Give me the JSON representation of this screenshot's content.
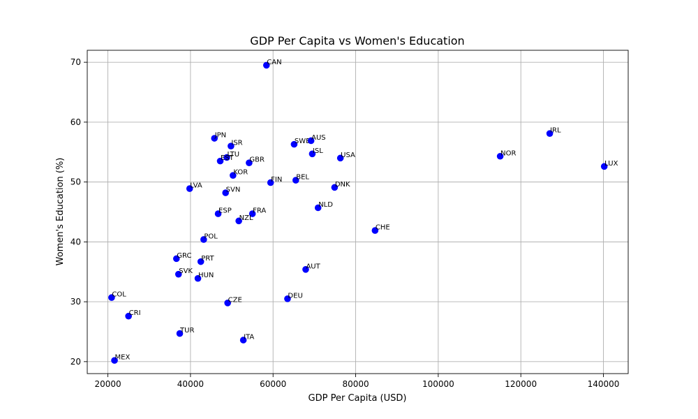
{
  "chart_data": {
    "type": "scatter",
    "title": "GDP Per Capita vs Women's Education",
    "xlabel": "GDP Per Capita (USD)",
    "ylabel": "Women's Education (%)",
    "xlim": [
      15000,
      146000
    ],
    "ylim": [
      18,
      72
    ],
    "xticks": [
      20000,
      40000,
      60000,
      80000,
      100000,
      120000,
      140000
    ],
    "yticks": [
      20,
      30,
      40,
      50,
      60,
      70
    ],
    "grid": true,
    "marker_color": "#0000ff",
    "points": [
      {
        "label": "CAN",
        "x": 58400,
        "y": 69.5
      },
      {
        "label": "JPN",
        "x": 45800,
        "y": 57.3
      },
      {
        "label": "ISR",
        "x": 49800,
        "y": 56.0
      },
      {
        "label": "SWE",
        "x": 65100,
        "y": 56.3
      },
      {
        "label": "AUS",
        "x": 69200,
        "y": 56.9
      },
      {
        "label": "IRL",
        "x": 127000,
        "y": 58.1
      },
      {
        "label": "ISL",
        "x": 69500,
        "y": 54.7
      },
      {
        "label": "USA",
        "x": 76300,
        "y": 54.0
      },
      {
        "label": "NOR",
        "x": 115000,
        "y": 54.3
      },
      {
        "label": "LTU",
        "x": 48800,
        "y": 54.1
      },
      {
        "label": "EST",
        "x": 47200,
        "y": 53.5
      },
      {
        "label": "GBR",
        "x": 54200,
        "y": 53.2
      },
      {
        "label": "LUX",
        "x": 140200,
        "y": 52.6
      },
      {
        "label": "KOR",
        "x": 50300,
        "y": 51.1
      },
      {
        "label": "FIN",
        "x": 59400,
        "y": 49.9
      },
      {
        "label": "BEL",
        "x": 65500,
        "y": 50.3
      },
      {
        "label": "LVA",
        "x": 39800,
        "y": 48.9
      },
      {
        "label": "SVN",
        "x": 48500,
        "y": 48.2
      },
      {
        "label": "DNK",
        "x": 74900,
        "y": 49.1
      },
      {
        "label": "ESP",
        "x": 46700,
        "y": 44.7
      },
      {
        "label": "FRA",
        "x": 55000,
        "y": 44.7
      },
      {
        "label": "NZL",
        "x": 51700,
        "y": 43.5
      },
      {
        "label": "NLD",
        "x": 70900,
        "y": 45.7
      },
      {
        "label": "CHE",
        "x": 84700,
        "y": 41.9
      },
      {
        "label": "POL",
        "x": 43200,
        "y": 40.4
      },
      {
        "label": "GRC",
        "x": 36600,
        "y": 37.2
      },
      {
        "label": "PRT",
        "x": 42500,
        "y": 36.7
      },
      {
        "label": "SVK",
        "x": 37100,
        "y": 34.6
      },
      {
        "label": "HUN",
        "x": 41800,
        "y": 33.9
      },
      {
        "label": "AUT",
        "x": 67900,
        "y": 35.4
      },
      {
        "label": "COL",
        "x": 20900,
        "y": 30.7
      },
      {
        "label": "CZE",
        "x": 49000,
        "y": 29.8
      },
      {
        "label": "DEU",
        "x": 63500,
        "y": 30.5
      },
      {
        "label": "CRI",
        "x": 25000,
        "y": 27.6
      },
      {
        "label": "TUR",
        "x": 37400,
        "y": 24.7
      },
      {
        "label": "ITA",
        "x": 52800,
        "y": 23.6
      },
      {
        "label": "MEX",
        "x": 21600,
        "y": 20.2
      }
    ]
  }
}
